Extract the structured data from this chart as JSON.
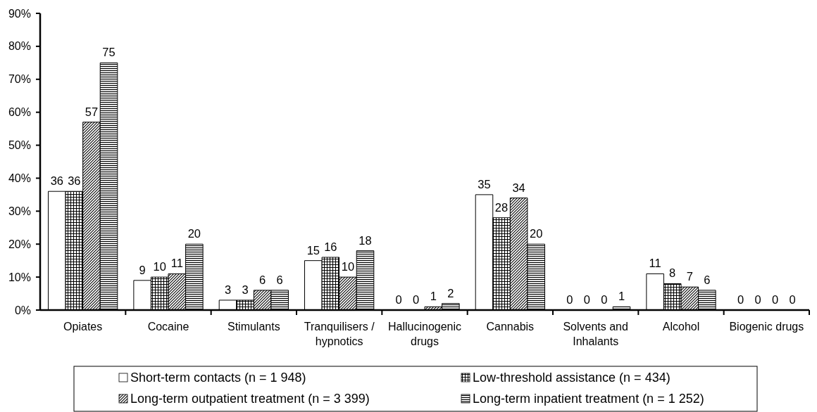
{
  "chart_data": {
    "type": "bar",
    "categories": [
      "Opiates",
      "Cocaine",
      "Stimulants",
      "Tranquilisers / hypnotics",
      "Hallucinogenic drugs",
      "Cannabis",
      "Solvents and Inhalants",
      "Alcohol",
      "Biogenic drugs"
    ],
    "series": [
      {
        "name": "Short-term contacts (n = 1 948)",
        "color": "#ffffff",
        "values": [
          36,
          9,
          3,
          15,
          0,
          35,
          0,
          11,
          0
        ]
      },
      {
        "name": "Low-threshold assistance (n = 434)",
        "color": "#000000",
        "values": [
          36,
          10,
          3,
          16,
          0,
          28,
          0,
          8,
          0
        ]
      },
      {
        "name": "Long-term outpatient treatment (n = 3 399)",
        "color": "#000000",
        "values": [
          57,
          11,
          6,
          10,
          1,
          34,
          0,
          7,
          0
        ]
      },
      {
        "name": "Long-term inpatient treatment (n = 1 252)",
        "color": "#000000",
        "values": [
          75,
          20,
          6,
          18,
          2,
          20,
          1,
          6,
          0
        ]
      }
    ],
    "ylim": [
      0,
      90
    ],
    "yticks": [
      {
        "value": 0,
        "label": "0%"
      },
      {
        "value": 10,
        "label": "10%"
      },
      {
        "value": 20,
        "label": "20%"
      },
      {
        "value": 30,
        "label": "30%"
      },
      {
        "value": 40,
        "label": "40%"
      },
      {
        "value": 50,
        "label": "50%"
      },
      {
        "value": 60,
        "label": "60%"
      },
      {
        "value": 70,
        "label": "70%"
      },
      {
        "value": 80,
        "label": "80%"
      },
      {
        "value": 90,
        "label": "90%"
      }
    ],
    "data_labels": true,
    "legend": "bottom"
  }
}
